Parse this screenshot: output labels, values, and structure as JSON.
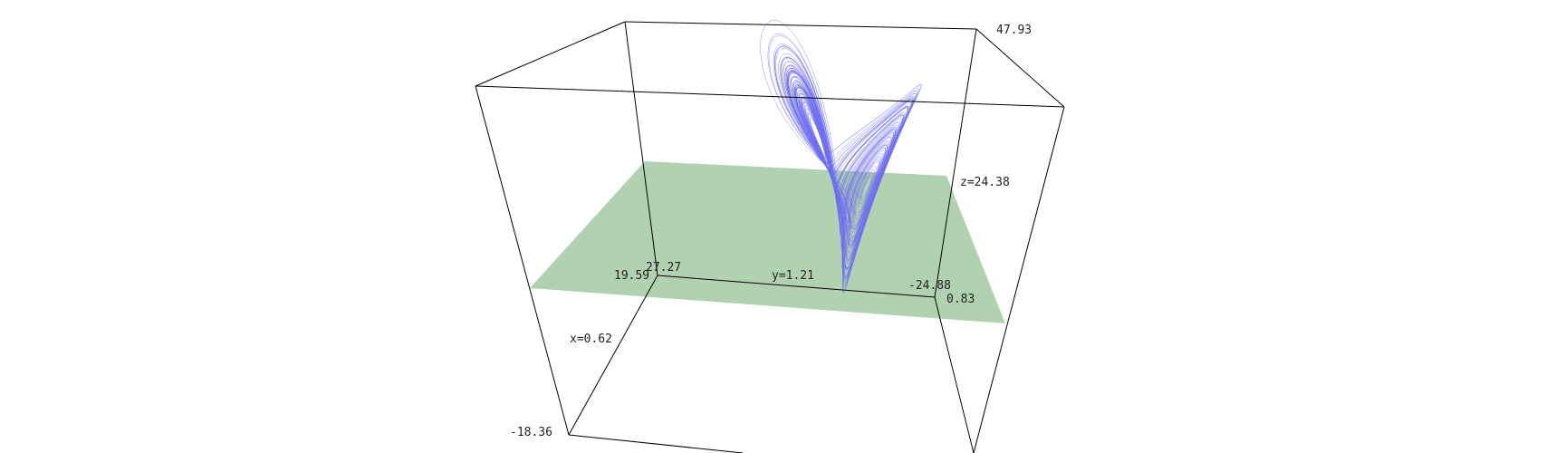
{
  "figure": {
    "box_color": "#000000",
    "curve_color": "#6e6ef2",
    "plane_color": "#a9cda9",
    "labels": {
      "z_max": "47.93",
      "z_plane": "z=24.38",
      "y_back": "27.27",
      "x_back": "19.59",
      "y_plane": "y=1.21",
      "y_front": "-24.88",
      "x_front": "0.83",
      "x_plane": "x=0.62",
      "z_min": "-18.36"
    }
  }
}
